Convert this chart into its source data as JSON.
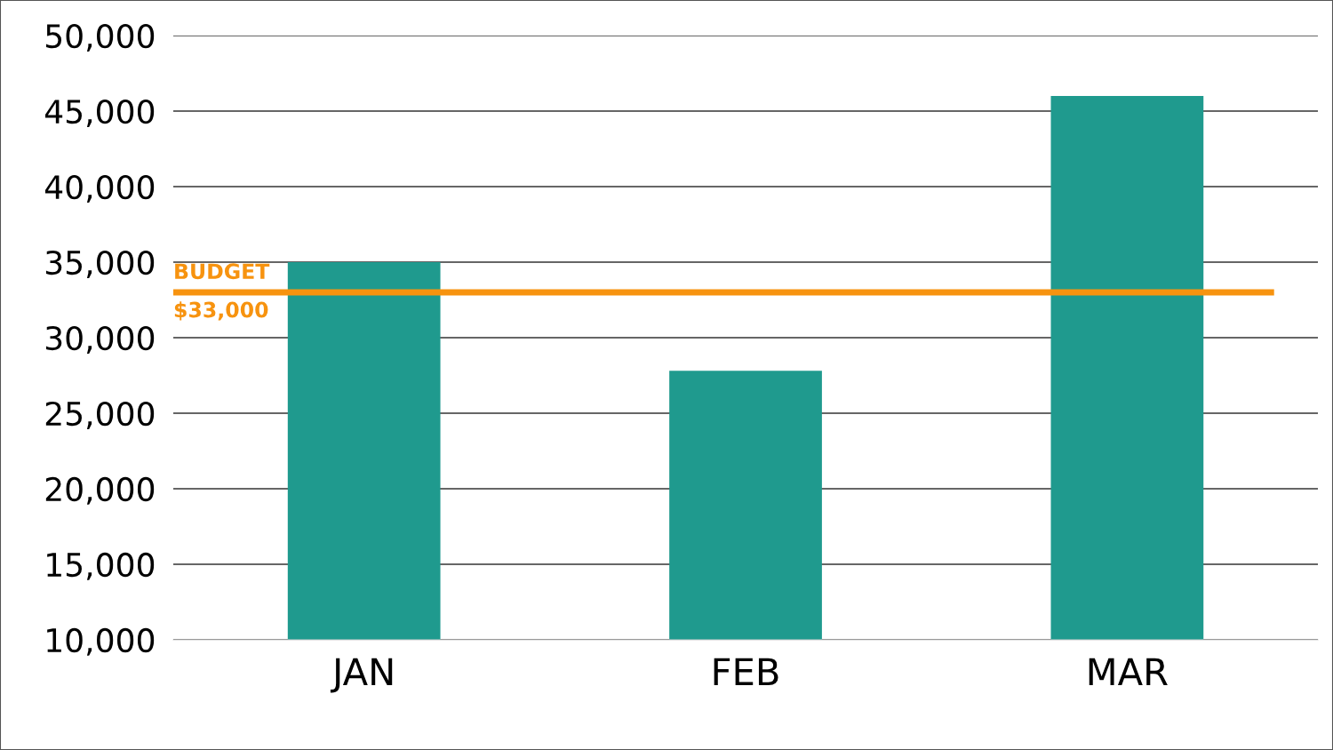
{
  "chart_data": {
    "type": "bar",
    "categories": [
      "JAN",
      "FEB",
      "MAR"
    ],
    "values": [
      35000,
      27800,
      46000
    ],
    "color": "#1f9a8e",
    "ylim": [
      10000,
      50000
    ],
    "yticks": [
      {
        "value": 10000,
        "label": "10,000"
      },
      {
        "value": 15000,
        "label": "15,000"
      },
      {
        "value": 20000,
        "label": "20,000"
      },
      {
        "value": 25000,
        "label": "25,000"
      },
      {
        "value": 30000,
        "label": "30,000"
      },
      {
        "value": 35000,
        "label": "35,000"
      },
      {
        "value": 40000,
        "label": "40,000"
      },
      {
        "value": 45000,
        "label": "45,000"
      },
      {
        "value": 50000,
        "label": "50,000"
      }
    ],
    "grid": "y",
    "ref_lines": [
      {
        "axis": "y",
        "value": 33000,
        "label": "BUDGET\n$33,000",
        "color": "#f7930f",
        "line_style": "solid"
      }
    ]
  }
}
